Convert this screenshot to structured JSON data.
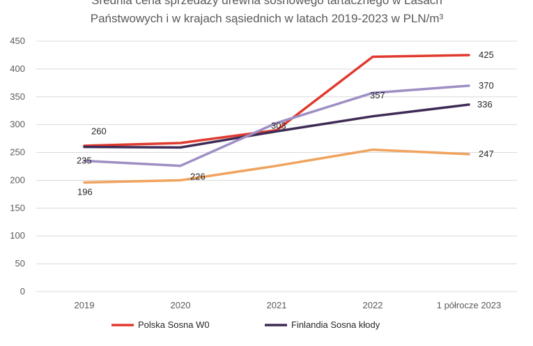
{
  "chart_data": {
    "type": "line",
    "title_lines": [
      "Średnia cena sprzedaży drewna sosnowego tartacznego w Lasach",
      "Państwowych i w krajach sąsiednich w latach 2019-2023 w PLN/m³"
    ],
    "categories": [
      "2019",
      "2020",
      "2021",
      "2022",
      "1 półrocze 2023"
    ],
    "ylim": [
      0,
      450
    ],
    "yticks": [
      0,
      50,
      100,
      150,
      200,
      250,
      300,
      350,
      400,
      450
    ],
    "grid": true,
    "legend_position": "bottom",
    "series": [
      {
        "name": "Polska Sosna W0",
        "color": "#e03a2f",
        "values": [
          262,
          267,
          290,
          422,
          425
        ],
        "labels": [
          {
            "i": 4,
            "text": "425"
          }
        ]
      },
      {
        "name": "Finlandia Sosna kłody",
        "color": "#3e2b55",
        "values": [
          260,
          259,
          288,
          315,
          336
        ],
        "labels": [
          {
            "i": 0,
            "text": "260"
          },
          {
            "i": 4,
            "text": "336"
          }
        ]
      },
      {
        "name": "",
        "color": "#9e8ec4",
        "values": [
          235,
          226,
          303,
          357,
          370
        ],
        "labels": [
          {
            "i": 0,
            "text": "235"
          },
          {
            "i": 1,
            "text": "226"
          },
          {
            "i": 2,
            "text": "303"
          },
          {
            "i": 3,
            "text": "357"
          },
          {
            "i": 4,
            "text": "370"
          }
        ]
      },
      {
        "name": "",
        "color": "#f0a35e",
        "values": [
          196,
          200,
          226,
          255,
          247
        ],
        "labels": [
          {
            "i": 0,
            "text": "196"
          },
          {
            "i": 4,
            "text": "247"
          }
        ]
      }
    ]
  }
}
